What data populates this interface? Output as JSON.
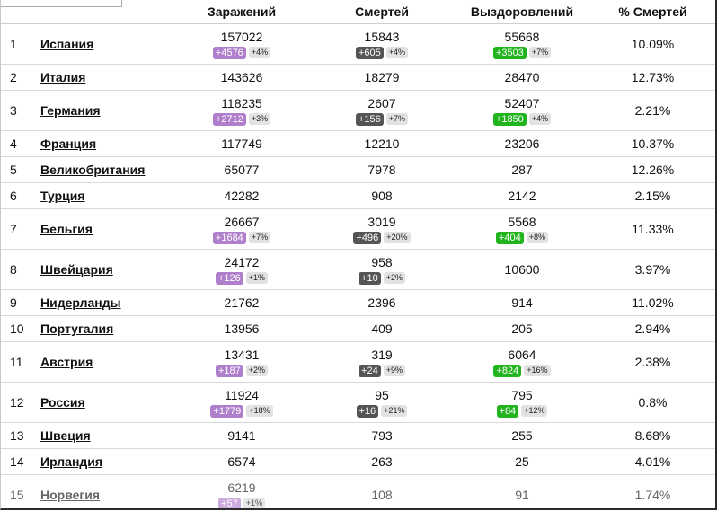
{
  "headers": {
    "infected": "Заражений",
    "deaths": "Смертей",
    "recovered": "Выздоровлений",
    "death_rate": "% Смертей"
  },
  "rows": [
    {
      "rank": "1",
      "country": "Испания",
      "infected": "157022",
      "inf_delta": "+4576",
      "inf_pct": "+4%",
      "deaths": "15843",
      "death_delta": "+605",
      "death_pct": "+4%",
      "recovered": "55668",
      "rec_delta": "+3503",
      "rec_pct": "+7%",
      "rate": "10.09%"
    },
    {
      "rank": "2",
      "country": "Италия",
      "infected": "143626",
      "deaths": "18279",
      "recovered": "28470",
      "rate": "12.73%"
    },
    {
      "rank": "3",
      "country": "Германия",
      "infected": "118235",
      "inf_delta": "+2712",
      "inf_pct": "+3%",
      "deaths": "2607",
      "death_delta": "+156",
      "death_pct": "+7%",
      "recovered": "52407",
      "rec_delta": "+1850",
      "rec_pct": "+4%",
      "rate": "2.21%"
    },
    {
      "rank": "4",
      "country": "Франция",
      "infected": "117749",
      "deaths": "12210",
      "recovered": "23206",
      "rate": "10.37%"
    },
    {
      "rank": "5",
      "country": "Великобритания",
      "infected": "65077",
      "deaths": "7978",
      "recovered": "287",
      "rate": "12.26%"
    },
    {
      "rank": "6",
      "country": "Турция",
      "infected": "42282",
      "deaths": "908",
      "recovered": "2142",
      "rate": "2.15%"
    },
    {
      "rank": "7",
      "country": "Бельгия",
      "infected": "26667",
      "inf_delta": "+1684",
      "inf_pct": "+7%",
      "deaths": "3019",
      "death_delta": "+496",
      "death_pct": "+20%",
      "recovered": "5568",
      "rec_delta": "+404",
      "rec_pct": "+8%",
      "rate": "11.33%"
    },
    {
      "rank": "8",
      "country": "Швейцария",
      "infected": "24172",
      "inf_delta": "+126",
      "inf_pct": "+1%",
      "deaths": "958",
      "death_delta": "+10",
      "death_pct": "+2%",
      "recovered": "10600",
      "rate": "3.97%"
    },
    {
      "rank": "9",
      "country": "Нидерланды",
      "infected": "21762",
      "deaths": "2396",
      "recovered": "914",
      "rate": "11.02%"
    },
    {
      "rank": "10",
      "country": "Португалия",
      "infected": "13956",
      "deaths": "409",
      "recovered": "205",
      "rate": "2.94%"
    },
    {
      "rank": "11",
      "country": "Австрия",
      "infected": "13431",
      "inf_delta": "+187",
      "inf_pct": "+2%",
      "deaths": "319",
      "death_delta": "+24",
      "death_pct": "+9%",
      "recovered": "6064",
      "rec_delta": "+824",
      "rec_pct": "+16%",
      "rate": "2.38%"
    },
    {
      "rank": "12",
      "country": "Россия",
      "infected": "11924",
      "inf_delta": "+1779",
      "inf_pct": "+18%",
      "deaths": "95",
      "death_delta": "+16",
      "death_pct": "+21%",
      "recovered": "795",
      "rec_delta": "+84",
      "rec_pct": "+12%",
      "rate": "0.8%"
    },
    {
      "rank": "13",
      "country": "Швеция",
      "infected": "9141",
      "deaths": "793",
      "recovered": "255",
      "rate": "8.68%"
    },
    {
      "rank": "14",
      "country": "Ирландия",
      "infected": "6574",
      "deaths": "263",
      "recovered": "25",
      "rate": "4.01%"
    },
    {
      "rank": "15",
      "country": "Норвегия",
      "infected": "6219",
      "inf_delta": "+57",
      "inf_pct": "+1%",
      "deaths": "108",
      "recovered": "91",
      "rate": "1.74%",
      "faded": true
    }
  ],
  "colors": {
    "infected_badge": "#b07fcb",
    "death_badge": "#555555",
    "recovered_badge": "#22b41e",
    "percent_badge": "#e2e2e2"
  }
}
